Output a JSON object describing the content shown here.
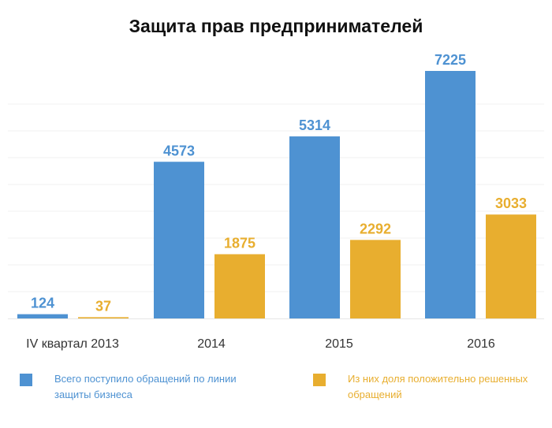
{
  "chart_data": {
    "type": "bar",
    "title": "Защита прав предпринимателей",
    "categories": [
      "IV квартал 2013",
      "2014",
      "2015",
      "2016"
    ],
    "series": [
      {
        "name": "Всего поступило обращений по линии защиты бизнеса",
        "values": [
          124,
          4573,
          5314,
          7225
        ],
        "color": "#4e92d2"
      },
      {
        "name": "Из них доля положительно решенных обращений",
        "values": [
          37,
          1875,
          2292,
          3033
        ],
        "color": "#e8ae2f"
      }
    ],
    "ylim": [
      0,
      7800
    ],
    "grid": true,
    "data_labels": true,
    "legend_position": "bottom"
  },
  "legend": {
    "total_label": "Всего поступило обращений по линии защиты бизнеса",
    "resolved_label": "Из них доля положительно решенных обращений"
  }
}
